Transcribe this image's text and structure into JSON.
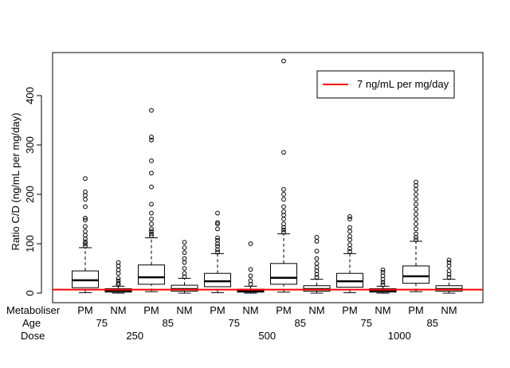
{
  "chart_data": {
    "type": "boxplot",
    "title": "",
    "ylabel": "Ratio C/D (ng/mL per mg/day)",
    "xlabel": "",
    "ylim": [
      0,
      490
    ],
    "yticks": [
      0,
      100,
      200,
      300,
      400
    ],
    "grid": false,
    "legend": {
      "placement": "top-right",
      "entries": [
        {
          "label": "7 ng/mL per mg/day",
          "color": "#ff0000"
        }
      ]
    },
    "reference_line": {
      "y": 7,
      "label": "7 ng/mL per mg/day",
      "color": "#ff0000"
    },
    "row_labels": {
      "metaboliser": "Metaboliser",
      "age": "Age",
      "dose": "Dose"
    },
    "groups": [
      {
        "metaboliser": "PM",
        "age": "75",
        "dose": "250",
        "q1": 11,
        "median": 26,
        "q3": 45,
        "whisker_low": 1,
        "whisker_high": 92,
        "outliers": [
          95,
          100,
          104,
          110,
          117,
          125,
          135,
          148,
          152,
          175,
          190,
          198,
          205,
          232
        ]
      },
      {
        "metaboliser": "NM",
        "age": "75",
        "dose": "250",
        "q1": 2,
        "median": 5,
        "q3": 9,
        "whisker_low": 0,
        "whisker_high": 14,
        "outliers": [
          17,
          20,
          25,
          30,
          40,
          47,
          55,
          62
        ]
      },
      {
        "metaboliser": "PM",
        "age": "85",
        "dose": "250",
        "q1": 18,
        "median": 32,
        "q3": 57,
        "whisker_low": 3,
        "whisker_high": 112,
        "outliers": [
          116,
          120,
          125,
          130,
          140,
          150,
          162,
          180,
          215,
          243,
          268,
          310,
          316,
          370
        ]
      },
      {
        "metaboliser": "NM",
        "age": "85",
        "dose": "250",
        "q1": 4,
        "median": 8,
        "q3": 16,
        "whisker_low": 0,
        "whisker_high": 30,
        "outliers": [
          33,
          40,
          50,
          62,
          70,
          82,
          92,
          103
        ]
      },
      {
        "metaboliser": "PM",
        "age": "75",
        "dose": "500",
        "q1": 13,
        "median": 24,
        "q3": 40,
        "whisker_low": 1,
        "whisker_high": 80,
        "outliers": [
          83,
          88,
          95,
          100,
          107,
          112,
          130,
          140,
          143,
          162
        ]
      },
      {
        "metaboliser": "NM",
        "age": "75",
        "dose": "500",
        "q1": 2,
        "median": 4,
        "q3": 8,
        "whisker_low": 0,
        "whisker_high": 14,
        "outliers": [
          18,
          25,
          35,
          48,
          100
        ]
      },
      {
        "metaboliser": "PM",
        "age": "85",
        "dose": "500",
        "q1": 18,
        "median": 31,
        "q3": 60,
        "whisker_low": 2,
        "whisker_high": 120,
        "outliers": [
          123,
          128,
          133,
          140,
          150,
          158,
          165,
          175,
          190,
          200,
          210,
          285,
          470
        ]
      },
      {
        "metaboliser": "NM",
        "age": "85",
        "dose": "500",
        "q1": 4,
        "median": 8,
        "q3": 15,
        "whisker_low": 0,
        "whisker_high": 28,
        "outliers": [
          32,
          38,
          45,
          52,
          60,
          70,
          85,
          105,
          113
        ]
      },
      {
        "metaboliser": "PM",
        "age": "75",
        "dose": "1000",
        "q1": 12,
        "median": 24,
        "q3": 40,
        "whisker_low": 1,
        "whisker_high": 80,
        "outliers": [
          84,
          90,
          98,
          108,
          115,
          125,
          133,
          150,
          155
        ]
      },
      {
        "metaboliser": "NM",
        "age": "75",
        "dose": "1000",
        "q1": 2,
        "median": 5,
        "q3": 9,
        "whisker_low": 0,
        "whisker_high": 14,
        "outliers": [
          17,
          22,
          28,
          35,
          42,
          47
        ]
      },
      {
        "metaboliser": "PM",
        "age": "85",
        "dose": "1000",
        "q1": 20,
        "median": 34,
        "q3": 55,
        "whisker_low": 3,
        "whisker_high": 105,
        "outliers": [
          108,
          113,
          120,
          130,
          140,
          150,
          160,
          170,
          180,
          190,
          200,
          210,
          218,
          225
        ]
      },
      {
        "metaboliser": "NM",
        "age": "85",
        "dose": "1000",
        "q1": 4,
        "median": 8,
        "q3": 15,
        "whisker_low": 0,
        "whisker_high": 28,
        "outliers": [
          32,
          38,
          45,
          55,
          62,
          67
        ]
      }
    ]
  }
}
